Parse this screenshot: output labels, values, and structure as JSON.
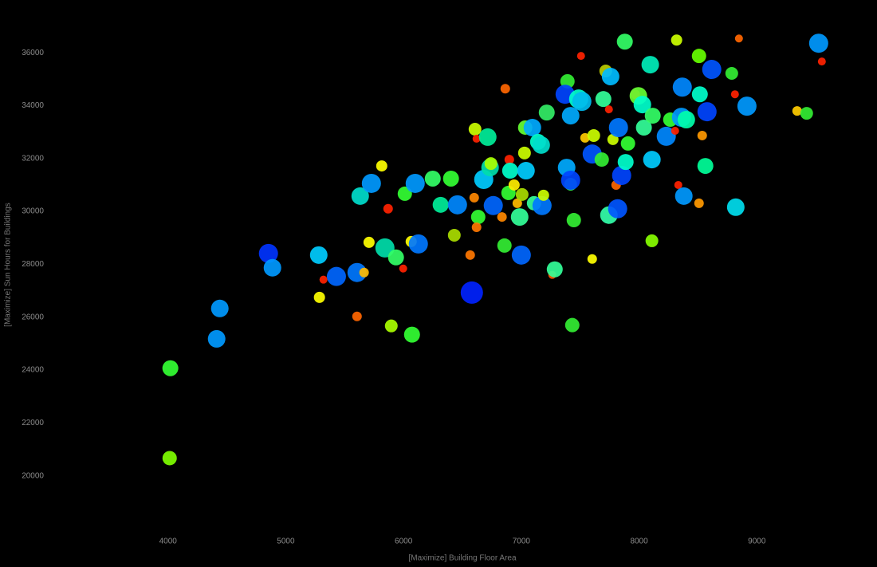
{
  "chart_data": {
    "type": "scatter",
    "x_label": "[Maximize] Building Floor Area",
    "y_label": "[Maximize] Sun Hours for Buildings",
    "xlim": [
      3000,
      10000
    ],
    "ylim": [
      18000,
      37000
    ],
    "xticks": [
      4000,
      5000,
      6000,
      7000,
      8000,
      9000
    ],
    "yticks": [
      20000,
      22000,
      24000,
      26000,
      28000,
      30000,
      32000,
      34000,
      36000
    ],
    "x": [
      4014,
      4020,
      4413,
      4440,
      4853,
      4887,
      5280,
      5320,
      5286,
      5430,
      5605,
      5605,
      5665,
      5632,
      5707,
      5727,
      5815,
      5842,
      5869,
      5896,
      5936,
      5997,
      6011,
      6065,
      6072,
      6099,
      6126,
      6248,
      6315,
      6403,
      6431,
      6458,
      6566,
      6580,
      6600,
      6607,
      6620,
      6634,
      6620,
      6681,
      6715,
      6735,
      6742,
      6762,
      6836,
      6857,
      6864,
      6891,
      6898,
      6905,
      6939,
      6966,
      6986,
      7000,
      7007,
      7027,
      7033,
      7040,
      7094,
      7108,
      7142,
      7176,
      7169,
      7189,
      7216,
      7263,
      7284,
      7392,
      7372,
      7385,
      7419,
      7419,
      7419,
      7433,
      7446,
      7487,
      7514,
      7507,
      7541,
      7602,
      7615,
      7602,
      7697,
      7717,
      7744,
      7758,
      7683,
      7744,
      7778,
      7818,
      7825,
      7805,
      7852,
      7879,
      7886,
      7906,
      7967,
      7994,
      8028,
      8041,
      8095,
      8109,
      8116,
      8109,
      8231,
      8265,
      8306,
      8319,
      8333,
      8367,
      8360,
      8380,
      8401,
      8509,
      8516,
      8536,
      8509,
      8563,
      8577,
      8617,
      8787,
      8814,
      8821,
      8848,
      8916,
      9342,
      9423,
      9525,
      9552
    ],
    "values": [
      20670,
      24070,
      25180,
      26330,
      28410,
      27870,
      28350,
      27420,
      26750,
      27540,
      27690,
      26030,
      27690,
      30580,
      28830,
      31060,
      31720,
      28620,
      30100,
      25670,
      28260,
      27840,
      30670,
      28860,
      25340,
      31060,
      28770,
      31240,
      30250,
      31240,
      29100,
      30250,
      28350,
      26930,
      30520,
      33110,
      32750,
      29790,
      29400,
      31210,
      32810,
      31660,
      31810,
      30220,
      29790,
      28710,
      34640,
      30700,
      31960,
      31540,
      31000,
      30310,
      29790,
      28350,
      30640,
      32210,
      33170,
      31540,
      33170,
      30310,
      32630,
      30220,
      32510,
      30610,
      33740,
      27600,
      27810,
      34920,
      34430,
      31660,
      33620,
      31030,
      31180,
      25700,
      29670,
      34250,
      34160,
      35880,
      32780,
      28200,
      32870,
      32170,
      34250,
      35310,
      33860,
      35100,
      31960,
      29860,
      32720,
      30100,
      33170,
      31000,
      31360,
      36420,
      31870,
      32570,
      34430,
      34370,
      34040,
      33170,
      35550,
      31960,
      33620,
      28890,
      32840,
      33470,
      33050,
      36480,
      31000,
      34700,
      33560,
      30580,
      33470,
      35880,
      34430,
      32870,
      30310,
      31720,
      33770,
      35370,
      35220,
      34430,
      30160,
      36540,
      33980,
      33800,
      33710,
      36360,
      35670
    ],
    "sizes": [
      9,
      10,
      11,
      11,
      12,
      11,
      11,
      5,
      7,
      12,
      12,
      6,
      6,
      11,
      7,
      12,
      7,
      12,
      6,
      8,
      10,
      5,
      9,
      7,
      10,
      12,
      12,
      10,
      10,
      10,
      8,
      12,
      6,
      14,
      6,
      8,
      5,
      9,
      6,
      12,
      11,
      11,
      8,
      12,
      6,
      9,
      6,
      9,
      6,
      10,
      7,
      6,
      11,
      12,
      8,
      8,
      9,
      11,
      11,
      9,
      10,
      12,
      11,
      7,
      10,
      5,
      10,
      9,
      12,
      11,
      11,
      8,
      12,
      9,
      9,
      12,
      12,
      5,
      6,
      6,
      8,
      12,
      10,
      8,
      5,
      11,
      9,
      11,
      7,
      12,
      12,
      6,
      12,
      10,
      10,
      9,
      6,
      11,
      11,
      10,
      11,
      11,
      10,
      8,
      12,
      9,
      5,
      7,
      5,
      12,
      12,
      11,
      11,
      9,
      10,
      6,
      6,
      10,
      12,
      12,
      8,
      5,
      11,
      5,
      12,
      6,
      8,
      12,
      5
    ],
    "colors": [
      "#7fff00",
      "#33ff33",
      "#0099ff",
      "#0099ff",
      "#0033ff",
      "#0099ff",
      "#00ccff",
      "#ff2200",
      "#ffff00",
      "#0066ff",
      "#0077ff",
      "#ff6600",
      "#ffbb00",
      "#00ddcc",
      "#ffff00",
      "#0099ff",
      "#ffff00",
      "#00ddaa",
      "#ff2200",
      "#aaff00",
      "#33ff66",
      "#ff2200",
      "#33ff33",
      "#ffff00",
      "#33ff33",
      "#0099ff",
      "#0077ff",
      "#33ff66",
      "#00ee99",
      "#33ff33",
      "#aadd00",
      "#0088ff",
      "#ff7700",
      "#0022ff",
      "#ff8800",
      "#ccff00",
      "#ff2200",
      "#33ff33",
      "#ff7700",
      "#00ccff",
      "#00ee99",
      "#00ddaa",
      "#aaff00",
      "#0066ff",
      "#ff8800",
      "#33ee33",
      "#ff6600",
      "#33ff33",
      "#ff2200",
      "#00ffcc",
      "#ffee00",
      "#ffbb00",
      "#33ff99",
      "#0066ff",
      "#aadd00",
      "#ccff00",
      "#66ff33",
      "#00ccff",
      "#00aaff",
      "#33ff99",
      "#00ffcc",
      "#0077ff",
      "#00ddcc",
      "#ccff00",
      "#33ee66",
      "#ff5500",
      "#33ff99",
      "#33ee33",
      "#0044ff",
      "#00aaff",
      "#00aaff",
      "#33ff66",
      "#0044ff",
      "#33ee33",
      "#33ee33",
      "#00ffcc",
      "#00bbee",
      "#ff2200",
      "#ffcc00",
      "#ffff00",
      "#ccff00",
      "#0055ff",
      "#33ff99",
      "#bbcc00",
      "#ff2200",
      "#00bbff",
      "#33ee33",
      "#33ffaa",
      "#ccff00",
      "#0055ff",
      "#0077ff",
      "#ff6600",
      "#0044ff",
      "#33ff66",
      "#00ffcc",
      "#33ff33",
      "#ff2200",
      "#66ff33",
      "#00ffcc",
      "#33ff99",
      "#00eebb",
      "#00ccff",
      "#33ff66",
      "#88ff00",
      "#0088ff",
      "#33ff33",
      "#ff2200",
      "#ccff00",
      "#ff2200",
      "#0088ff",
      "#0099ff",
      "#0099ff",
      "#00ffaa",
      "#66ff00",
      "#00ffcc",
      "#ff9900",
      "#ff9900",
      "#00ff99",
      "#0044ff",
      "#0055ff",
      "#33ee33",
      "#ff2200",
      "#00ddee",
      "#ff6600",
      "#0099ff",
      "#ffcc00",
      "#33ee33",
      "#0099ff",
      "#ff2200"
    ]
  }
}
